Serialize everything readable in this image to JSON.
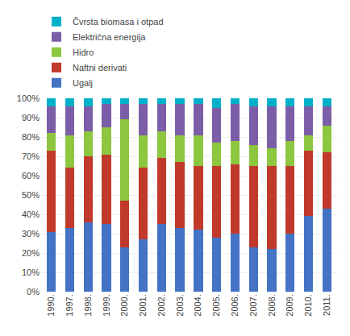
{
  "chart_data": {
    "type": "bar",
    "stacked": true,
    "categories": [
      "1990.",
      "1997.",
      "1998.",
      "1999.",
      "2000.",
      "2001.",
      "2002.",
      "2003.",
      "2004.",
      "2005.",
      "2006.",
      "2007.",
      "2008.",
      "2009.",
      "2010.",
      "2011."
    ],
    "series": [
      {
        "name": "Ugalj",
        "color": "#4472C4",
        "values": [
          31,
          33,
          36,
          35,
          23,
          27,
          35,
          33,
          32,
          28,
          30,
          23,
          22,
          30,
          39,
          43
        ]
      },
      {
        "name": "Naftni derivati",
        "color": "#C0392B",
        "values": [
          42,
          31,
          34,
          36,
          24,
          37,
          34,
          34,
          33,
          37,
          36,
          42,
          43,
          35,
          34,
          29
        ]
      },
      {
        "name": "Hidro",
        "color": "#8DC63F",
        "values": [
          9,
          17,
          13,
          14,
          42,
          17,
          14,
          14,
          16,
          12,
          12,
          11,
          9,
          13,
          8,
          14
        ]
      },
      {
        "name": "Električna energija",
        "color": "#7B5EA7",
        "values": [
          14,
          15,
          13,
          12,
          8,
          16,
          14,
          16,
          16,
          18,
          19,
          20,
          22,
          18,
          15,
          10
        ]
      },
      {
        "name": "Čvrsta biomasa i otpad",
        "color": "#00B0C8",
        "values": [
          4,
          4,
          4,
          3,
          3,
          3,
          3,
          3,
          3,
          5,
          3,
          4,
          4,
          4,
          4,
          4
        ]
      }
    ],
    "ylim": [
      0,
      100
    ],
    "yticks": [
      {
        "value": 0,
        "label": "0%"
      },
      {
        "value": 10,
        "label": "10%"
      },
      {
        "value": 20,
        "label": "20%"
      },
      {
        "value": 30,
        "label": "30%"
      },
      {
        "value": 40,
        "label": "40%"
      },
      {
        "value": 50,
        "label": "50%"
      },
      {
        "value": 60,
        "label": "60%"
      },
      {
        "value": 70,
        "label": "70%"
      },
      {
        "value": 80,
        "label": "80%"
      },
      {
        "value": 90,
        "label": "90%"
      },
      {
        "value": 100,
        "label": "100%"
      }
    ],
    "grid": true,
    "legend": "top"
  }
}
